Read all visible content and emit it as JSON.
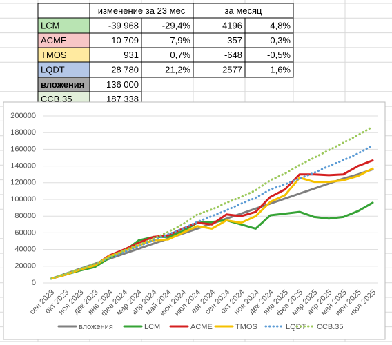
{
  "table": {
    "header": [
      "изменение за 23 мес",
      "за месяц"
    ],
    "rows": [
      [
        "LCM",
        "-39 968",
        "-29,4%",
        "4196",
        "4,8%"
      ],
      [
        "ACME",
        "10 709",
        "7,9%",
        "357",
        "0,3%"
      ],
      [
        "TMOS",
        "931",
        "0,7%",
        "-648",
        "-0,5%"
      ],
      [
        "LQDT",
        "28 780",
        "21,2%",
        "2577",
        "1,6%"
      ]
    ],
    "totals": [
      [
        "вложения",
        "136 000"
      ],
      [
        "ССВ.35",
        "187 338"
      ]
    ]
  },
  "chart_data": {
    "type": "line",
    "categories": [
      "сен 2023",
      "окт 2023",
      "ноя 2023",
      "дек 2023",
      "янв 2024",
      "фев 2024",
      "мар 2024",
      "апр 2024",
      "май 2024",
      "июн 2024",
      "июл 2024",
      "авг 2024",
      "сен 2024",
      "окт 2024",
      "ноя 2024",
      "дек 2024",
      "янв 2025",
      "фев 2025",
      "мар 2025",
      "апр 2025",
      "май 2025",
      "июн 2025",
      "июл 2025"
    ],
    "ylim": [
      0,
      200000
    ],
    "yticks": [
      0,
      20000,
      40000,
      60000,
      80000,
      100000,
      120000,
      140000,
      160000,
      180000,
      200000
    ],
    "legend": "bottom",
    "series": [
      {
        "name": "вложения",
        "color": "#7f7f7f",
        "style": "solid",
        "values": [
          5000,
          11000,
          17000,
          23000,
          29000,
          35000,
          41000,
          47000,
          53000,
          59000,
          65000,
          71000,
          77000,
          83000,
          89000,
          95000,
          101000,
          107000,
          113000,
          119000,
          125000,
          130000,
          136000
        ]
      },
      {
        "name": "LCM",
        "color": "#36a336",
        "style": "solid",
        "values": [
          5000,
          10000,
          15000,
          19000,
          30000,
          38000,
          51000,
          55000,
          55000,
          62000,
          72000,
          73000,
          75000,
          70000,
          65000,
          81000,
          83000,
          85000,
          79000,
          77000,
          79000,
          86000,
          96000
        ]
      },
      {
        "name": "ACME",
        "color": "#d42020",
        "style": "solid",
        "values": [
          5000,
          10000,
          16000,
          21000,
          33000,
          40000,
          48000,
          55000,
          57000,
          65000,
          72000,
          70000,
          82000,
          80000,
          85000,
          103000,
          112000,
          130000,
          130000,
          129000,
          130000,
          140000,
          146700
        ]
      },
      {
        "name": "TMOS",
        "color": "#f5c000",
        "style": "solid",
        "values": [
          5000,
          10000,
          16000,
          21000,
          32000,
          38000,
          45000,
          51000,
          52000,
          60000,
          68000,
          65000,
          75000,
          72000,
          80000,
          97000,
          105000,
          126000,
          121000,
          121000,
          123000,
          128000,
          137000
        ]
      },
      {
        "name": "LQDT",
        "color": "#5b9bd5",
        "style": "dotted",
        "values": [
          5000,
          11000,
          17000,
          23000,
          30000,
          37000,
          44000,
          51000,
          58000,
          65000,
          73000,
          80000,
          87000,
          95000,
          102000,
          112000,
          118000,
          125000,
          132000,
          140000,
          147000,
          155000,
          164800
        ]
      },
      {
        "name": "ССВ.35",
        "color": "#9bc85a",
        "style": "dotted",
        "values": [
          5000,
          11000,
          17000,
          23000,
          31000,
          39000,
          46000,
          53000,
          61000,
          70000,
          82000,
          88000,
          96000,
          103000,
          111000,
          123000,
          131000,
          141000,
          150000,
          159000,
          168000,
          177000,
          187000
        ]
      }
    ]
  }
}
